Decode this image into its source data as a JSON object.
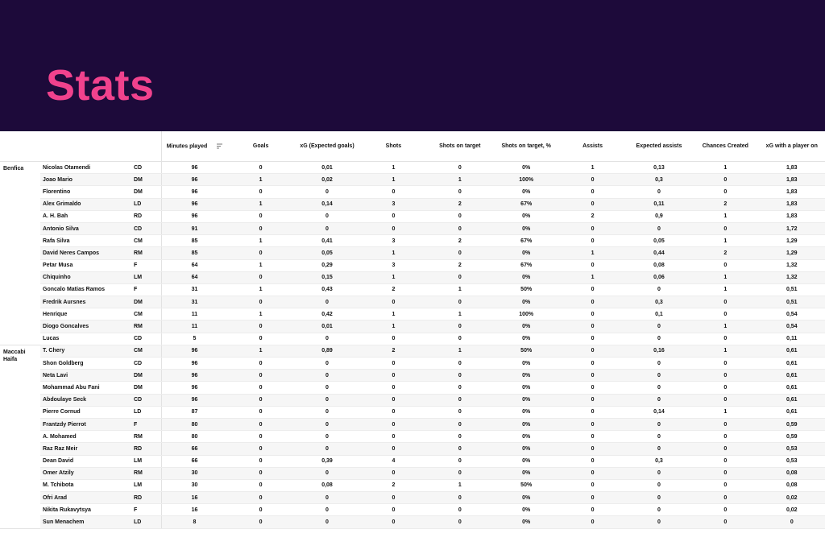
{
  "title": "Stats",
  "table": {
    "header": [
      "Minutes played",
      "Goals",
      "xG (Expected goals)",
      "Shots",
      "Shots on target",
      "Shots on target, %",
      "Assists",
      "Expected assists",
      "Chances Created",
      "xG with a player on"
    ],
    "groups": [
      {
        "team": "Benfica",
        "rows": [
          [
            "Nicolas Otamendi",
            "CD",
            "96",
            "0",
            "0,01",
            "1",
            "0",
            "0%",
            "1",
            "0,13",
            "1",
            "1,83"
          ],
          [
            "Joao Mario",
            "DM",
            "96",
            "1",
            "0,02",
            "1",
            "1",
            "100%",
            "0",
            "0,3",
            "0",
            "1,83"
          ],
          [
            "Florentino",
            "DM",
            "96",
            "0",
            "0",
            "0",
            "0",
            "0%",
            "0",
            "0",
            "0",
            "1,83"
          ],
          [
            "Alex Grimaldo",
            "LD",
            "96",
            "1",
            "0,14",
            "3",
            "2",
            "67%",
            "0",
            "0,11",
            "2",
            "1,83"
          ],
          [
            "A. H. Bah",
            "RD",
            "96",
            "0",
            "0",
            "0",
            "0",
            "0%",
            "2",
            "0,9",
            "1",
            "1,83"
          ],
          [
            "Antonio Silva",
            "CD",
            "91",
            "0",
            "0",
            "0",
            "0",
            "0%",
            "0",
            "0",
            "0",
            "1,72"
          ],
          [
            "Rafa Silva",
            "CM",
            "85",
            "1",
            "0,41",
            "3",
            "2",
            "67%",
            "0",
            "0,05",
            "1",
            "1,29"
          ],
          [
            "David Neres Campos",
            "RM",
            "85",
            "0",
            "0,05",
            "1",
            "0",
            "0%",
            "1",
            "0,44",
            "2",
            "1,29"
          ],
          [
            "Petar Musa",
            "F",
            "64",
            "1",
            "0,29",
            "3",
            "2",
            "67%",
            "0",
            "0,08",
            "0",
            "1,32"
          ],
          [
            "Chiquinho",
            "LM",
            "64",
            "0",
            "0,15",
            "1",
            "0",
            "0%",
            "1",
            "0,06",
            "1",
            "1,32"
          ],
          [
            "Goncalo Matias Ramos",
            "F",
            "31",
            "1",
            "0,43",
            "2",
            "1",
            "50%",
            "0",
            "0",
            "1",
            "0,51"
          ],
          [
            "Fredrik Aursnes",
            "DM",
            "31",
            "0",
            "0",
            "0",
            "0",
            "0%",
            "0",
            "0,3",
            "0",
            "0,51"
          ],
          [
            "Henrique",
            "CM",
            "11",
            "1",
            "0,42",
            "1",
            "1",
            "100%",
            "0",
            "0,1",
            "0",
            "0,54"
          ],
          [
            "Diogo Goncalves",
            "RM",
            "11",
            "0",
            "0,01",
            "1",
            "0",
            "0%",
            "0",
            "0",
            "1",
            "0,54"
          ],
          [
            "Lucas",
            "CD",
            "5",
            "0",
            "0",
            "0",
            "0",
            "0%",
            "0",
            "0",
            "0",
            "0,11"
          ]
        ]
      },
      {
        "team": "Maccabi Haifa",
        "rows": [
          [
            "T. Chery",
            "CM",
            "96",
            "1",
            "0,89",
            "2",
            "1",
            "50%",
            "0",
            "0,16",
            "1",
            "0,61"
          ],
          [
            "Shon Goldberg",
            "CD",
            "96",
            "0",
            "0",
            "0",
            "0",
            "0%",
            "0",
            "0",
            "0",
            "0,61"
          ],
          [
            "Neta Lavi",
            "DM",
            "96",
            "0",
            "0",
            "0",
            "0",
            "0%",
            "0",
            "0",
            "0",
            "0,61"
          ],
          [
            "Mohammad Abu Fani",
            "DM",
            "96",
            "0",
            "0",
            "0",
            "0",
            "0%",
            "0",
            "0",
            "0",
            "0,61"
          ],
          [
            "Abdoulaye Seck",
            "CD",
            "96",
            "0",
            "0",
            "0",
            "0",
            "0%",
            "0",
            "0",
            "0",
            "0,61"
          ],
          [
            "Pierre Cornud",
            "LD",
            "87",
            "0",
            "0",
            "0",
            "0",
            "0%",
            "0",
            "0,14",
            "1",
            "0,61"
          ],
          [
            "Frantzdy Pierrot",
            "F",
            "80",
            "0",
            "0",
            "0",
            "0",
            "0%",
            "0",
            "0",
            "0",
            "0,59"
          ],
          [
            "A. Mohamed",
            "RM",
            "80",
            "0",
            "0",
            "0",
            "0",
            "0%",
            "0",
            "0",
            "0",
            "0,59"
          ],
          [
            "Raz Raz Meir",
            "RD",
            "66",
            "0",
            "0",
            "0",
            "0",
            "0%",
            "0",
            "0",
            "0",
            "0,53"
          ],
          [
            "Dean David",
            "LM",
            "66",
            "0",
            "0,39",
            "4",
            "0",
            "0%",
            "0",
            "0,3",
            "0",
            "0,53"
          ],
          [
            "Omer Atzily",
            "RM",
            "30",
            "0",
            "0",
            "0",
            "0",
            "0%",
            "0",
            "0",
            "0",
            "0,08"
          ],
          [
            "M. Tchibota",
            "LM",
            "30",
            "0",
            "0,08",
            "2",
            "1",
            "50%",
            "0",
            "0",
            "0",
            "0,08"
          ],
          [
            "Ofri Arad",
            "RD",
            "16",
            "0",
            "0",
            "0",
            "0",
            "0%",
            "0",
            "0",
            "0",
            "0,02"
          ],
          [
            "Nikita Rukavytsya",
            "F",
            "16",
            "0",
            "0",
            "0",
            "0",
            "0%",
            "0",
            "0",
            "0",
            "0,02"
          ],
          [
            "Sun Menachem",
            "LD",
            "8",
            "0",
            "0",
            "0",
            "0",
            "0%",
            "0",
            "0",
            "0",
            "0"
          ]
        ]
      }
    ]
  }
}
